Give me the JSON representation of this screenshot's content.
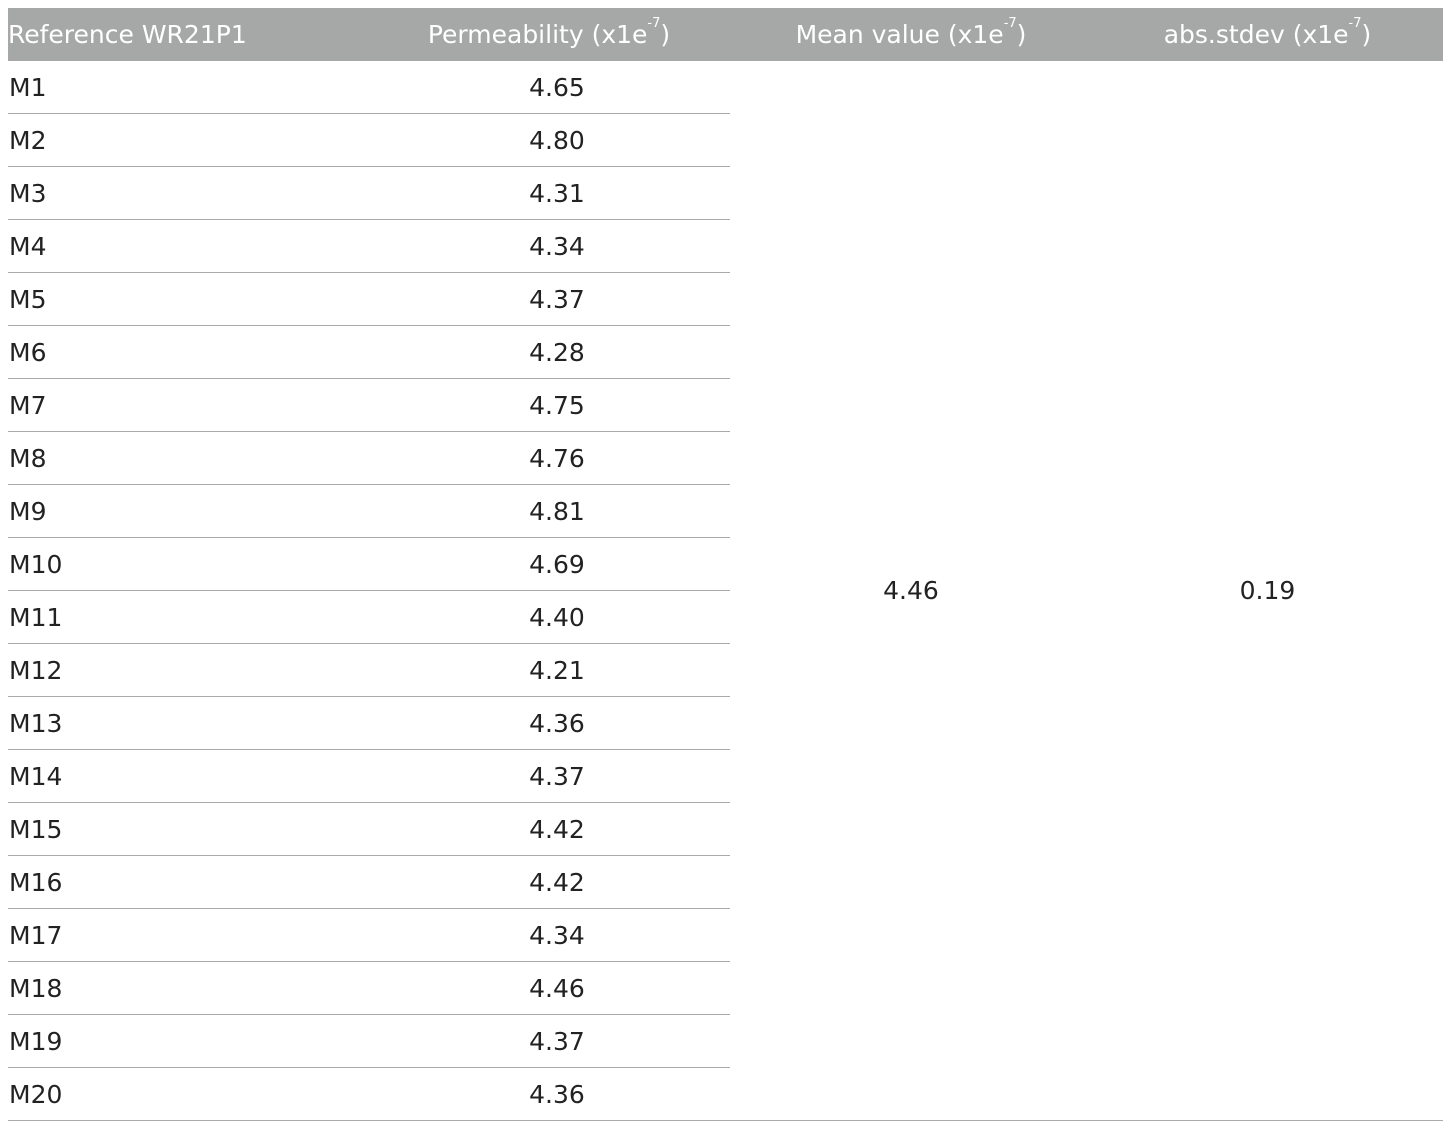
{
  "table": {
    "headers": {
      "reference": "Reference WR21P1",
      "permeability": "Permeability (x1e",
      "mean": "Mean value (x1e",
      "stdev": "abs.stdev (x1e",
      "exponent": "-7",
      "close_paren": ")"
    },
    "rows": [
      {
        "name": "M1",
        "value": "4.65"
      },
      {
        "name": "M2",
        "value": "4.80"
      },
      {
        "name": "M3",
        "value": "4.31"
      },
      {
        "name": "M4",
        "value": "4.34"
      },
      {
        "name": "M5",
        "value": "4.37"
      },
      {
        "name": "M6",
        "value": "4.28"
      },
      {
        "name": "M7",
        "value": "4.75"
      },
      {
        "name": "M8",
        "value": "4.76"
      },
      {
        "name": "M9",
        "value": "4.81"
      },
      {
        "name": "M10",
        "value": "4.69"
      },
      {
        "name": "M11",
        "value": "4.40"
      },
      {
        "name": "M12",
        "value": "4.21"
      },
      {
        "name": "M13",
        "value": "4.36"
      },
      {
        "name": "M14",
        "value": "4.37"
      },
      {
        "name": "M15",
        "value": "4.42"
      },
      {
        "name": "M16",
        "value": "4.42"
      },
      {
        "name": "M17",
        "value": "4.34"
      },
      {
        "name": "M18",
        "value": "4.46"
      },
      {
        "name": "M19",
        "value": "4.37"
      },
      {
        "name": "M20",
        "value": "4.36"
      }
    ],
    "mean_value": "4.46",
    "abs_stdev": "0.19"
  },
  "colors": {
    "header_bg": "#a6a8a8",
    "header_text": "#ffffff",
    "row_rule": "#a9a9a9",
    "body_text": "#222222"
  }
}
